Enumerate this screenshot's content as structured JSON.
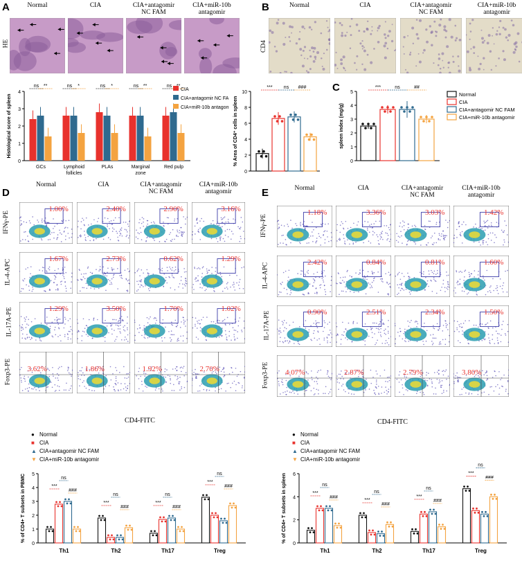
{
  "panels": {
    "A": "A",
    "B": "B",
    "C": "C",
    "D": "D",
    "E": "E"
  },
  "colors": {
    "normal": "#111111",
    "cia": "#e8322d",
    "nc": "#2f6a8f",
    "anta": "#f4a340",
    "he": "#c79bc7",
    "cd4": "#e3dcc8"
  },
  "groups_four": [
    "Normal",
    "CIA",
    "CIA+antagomir\nNC FAM",
    "CIA+miR-10b\nantagomir"
  ],
  "panelA": {
    "row_label": "HE"
  },
  "panelB": {
    "row_label": "CD4"
  },
  "panelD": {
    "row_labels": [
      "IFNγ-PE",
      "IL-4-APC",
      "IL-17A-PE",
      "Foxp3-PE"
    ],
    "xlabel": "CD4-FITC",
    "percents": [
      [
        "1.00%",
        "2.40%",
        "2.90%",
        "3.16%"
      ],
      [
        "1.67%",
        "2.73%",
        "0.62%",
        "1.29%"
      ],
      [
        "1.29%",
        "3.50%",
        "1.70%",
        "1.02%"
      ],
      [
        "3.62%",
        "1.86%",
        "1.92%",
        "2.70%"
      ]
    ]
  },
  "panelE": {
    "row_labels": [
      "IFNγ-PE",
      "IL-4-APC",
      "IL-17A-PE",
      "Foxp3-PE"
    ],
    "xlabel": "CD4-FITC",
    "percents": [
      [
        "1.18%",
        "3.36%",
        "3.03%",
        "1.42%"
      ],
      [
        "2.42%",
        "0.84%",
        "0.81%",
        "1.60%"
      ],
      [
        "0.90%",
        "2.51%",
        "2.34%",
        "1.50%"
      ],
      [
        "4.07%",
        "2.87%",
        "2.79%",
        "3.80%"
      ]
    ]
  },
  "chart_data": [
    {
      "id": "A-score",
      "type": "bar",
      "ylabel": "Histological score of spleen",
      "ylim": [
        0,
        4
      ],
      "yticks": [
        0,
        1,
        2,
        3,
        4
      ],
      "categories": [
        "GCs",
        "Lymphoid\nfollicles",
        "PLAs",
        "Marginal\nzone",
        "Red pulp"
      ],
      "series": [
        {
          "name": "CIA",
          "values": [
            2.4,
            2.6,
            2.8,
            2.6,
            2.6
          ],
          "err": [
            0.5,
            0.5,
            0.5,
            0.5,
            0.5
          ]
        },
        {
          "name": "CIA+antagomir NC FAM",
          "values": [
            2.6,
            2.6,
            2.6,
            2.6,
            2.8
          ],
          "err": [
            0.5,
            0.5,
            0.5,
            0.5,
            0.5
          ]
        },
        {
          "name": "CIA+miR-10b antagomir",
          "values": [
            1.4,
            1.6,
            1.6,
            1.4,
            1.6
          ],
          "err": [
            0.5,
            0.5,
            0.5,
            0.5,
            0.5
          ]
        }
      ],
      "sig": [
        [
          "ns",
          "**"
        ],
        [
          "ns",
          "*"
        ],
        [
          "ns",
          "*"
        ],
        [
          "ns",
          "**"
        ],
        [
          "ns",
          "**"
        ]
      ]
    },
    {
      "id": "B-area",
      "type": "bar",
      "ylabel": "% Area of CD4⁺ cells in spleen",
      "ylim": [
        0,
        10
      ],
      "yticks": [
        0,
        2,
        4,
        6,
        8,
        10
      ],
      "categories": [
        "Normal",
        "CIA",
        "CIA+antagomir NC FAM",
        "CIA+miR-10b antagomir"
      ],
      "values": [
        2.2,
        6.6,
        6.8,
        4.3
      ],
      "err": [
        0.6,
        0.8,
        0.7,
        0.5
      ],
      "sig": [
        "***",
        "ns",
        "###"
      ]
    },
    {
      "id": "C-spleen",
      "type": "bar",
      "ylabel": "spleen index (mg/g)",
      "ylim": [
        0,
        5
      ],
      "yticks": [
        0,
        1,
        2,
        3,
        4,
        5
      ],
      "categories": [
        "Normal",
        "CIA",
        "CIA+antagomir NC FAM",
        "CIA+miR-10b antagomir"
      ],
      "values": [
        2.5,
        3.7,
        3.7,
        3.0
      ],
      "err": [
        0.2,
        0.3,
        0.6,
        0.3
      ],
      "sig": [
        "***",
        "ns",
        "##"
      ]
    },
    {
      "id": "D-pbmc",
      "type": "bar",
      "ylabel": "% of CD4+ T subsets in PBMC",
      "ylim": [
        0,
        5
      ],
      "yticks": [
        0,
        1,
        2,
        3,
        4,
        5
      ],
      "categories": [
        "Th1",
        "Th2",
        "Th17",
        "Treg"
      ],
      "series": [
        {
          "name": "Normal",
          "values": [
            1.0,
            1.8,
            0.7,
            3.3
          ]
        },
        {
          "name": "CIA",
          "values": [
            2.8,
            0.4,
            1.7,
            2.0
          ]
        },
        {
          "name": "CIA+antagomir NC FAM",
          "values": [
            3.0,
            0.4,
            1.8,
            1.6
          ]
        },
        {
          "name": "CIA+miR-10b antagomir",
          "values": [
            1.0,
            1.1,
            1.0,
            2.7
          ]
        }
      ],
      "sig": [
        [
          "***",
          "ns",
          "###"
        ],
        [
          "***",
          "ns",
          "###"
        ],
        [
          "***",
          "ns",
          "###"
        ],
        [
          "***",
          "ns",
          "###"
        ]
      ]
    },
    {
      "id": "E-spleen",
      "type": "bar",
      "ylabel": "% of CD4+ T subsets in spleen",
      "ylim": [
        0,
        6
      ],
      "yticks": [
        0,
        2,
        4,
        6
      ],
      "categories": [
        "Th1",
        "Th2",
        "Th17",
        "Treg"
      ],
      "series": [
        {
          "name": "Normal",
          "values": [
            1.1,
            2.4,
            1.0,
            4.7
          ]
        },
        {
          "name": "CIA",
          "values": [
            3.0,
            0.9,
            2.5,
            2.8
          ]
        },
        {
          "name": "CIA+antagomir NC FAM",
          "values": [
            3.0,
            0.8,
            2.7,
            2.5
          ]
        },
        {
          "name": "CIA+miR-10b antagomir",
          "values": [
            1.5,
            1.6,
            1.4,
            4.0
          ]
        }
      ],
      "sig": [
        [
          "***",
          "ns",
          "###"
        ],
        [
          "***",
          "ns",
          "###"
        ],
        [
          "***",
          "ns",
          "###"
        ],
        [
          "***",
          "ns",
          "###"
        ]
      ]
    }
  ]
}
